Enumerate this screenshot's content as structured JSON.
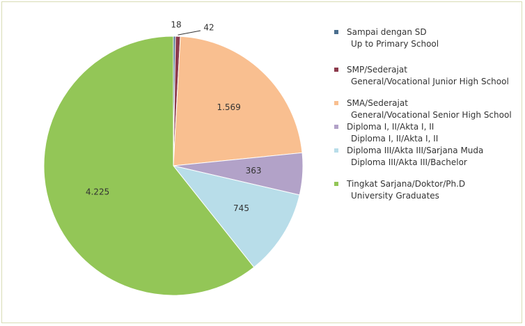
{
  "chart_data": {
    "type": "pie",
    "categories": [
      [
        "Sampai dengan SD",
        "Up to Primary School"
      ],
      [
        "SMP/Sederajat",
        "General/Vocational Junior High School"
      ],
      [
        "SMA/Sederajat",
        "General/Vocational Senior High School"
      ],
      [
        "Diploma I, II/Akta I, II",
        "Diploma I, II/Akta I, II"
      ],
      [
        "Diploma III/Akta III/Sarjana Muda",
        "Diploma III/Akta III/Bachelor"
      ],
      [
        "Tingkat Sarjana/Doktor/Ph.D",
        "University Graduates"
      ]
    ],
    "values": [
      18,
      42,
      1569,
      363,
      745,
      4225
    ],
    "value_labels": [
      "18",
      "42",
      "1.569",
      "363",
      "745",
      "4.225"
    ],
    "colors": [
      "#4a6e8e",
      "#8c3a4c",
      "#f9bf90",
      "#b2a2c8",
      "#b8dde9",
      "#93c657"
    ]
  }
}
